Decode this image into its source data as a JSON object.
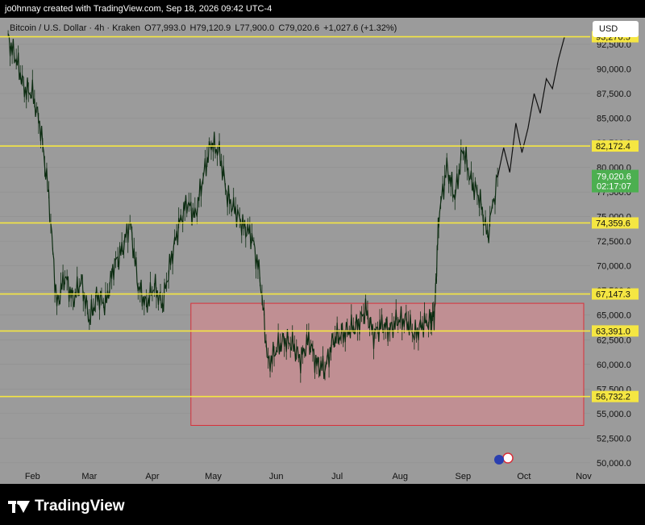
{
  "header": {
    "attribution": "jo0hnnay created with TradingView.com, Sep 18, 2026 09:42 UTC-4"
  },
  "legend": {
    "symbol": "Bitcoin / U.S. Dollar · 4h · Kraken",
    "open": "O77,993.0",
    "high": "H79,120.9",
    "low": "L77,900.0",
    "close": "C79,020.6",
    "change": "+1,027.6 (+1.32%)"
  },
  "currency_button": "USD",
  "brand": {
    "name": "TradingView"
  },
  "colors": {
    "plot_bg": "#9b9b9b",
    "level_line": "#f5e642",
    "zone_fill": "#c08f93",
    "zone_border": "#d9303a",
    "candle": "#0d2d12",
    "price_tag": "#4caf50"
  },
  "chart_data": {
    "type": "line",
    "series": [
      {
        "values_kind": "4h BTC/USD price path (historical candles through Sep 18)",
        "x": [
          "2026-01-20",
          "2026-01-24",
          "2026-01-28",
          "2026-02-01",
          "2026-02-05",
          "2026-02-09",
          "2026-02-13",
          "2026-02-17",
          "2026-02-21",
          "2026-02-25",
          "2026-03-01",
          "2026-03-05",
          "2026-03-09",
          "2026-03-13",
          "2026-03-17",
          "2026-03-21",
          "2026-03-25",
          "2026-03-29",
          "2026-04-02",
          "2026-04-06",
          "2026-04-10",
          "2026-04-14",
          "2026-04-18",
          "2026-04-22",
          "2026-04-26",
          "2026-04-30",
          "2026-05-04",
          "2026-05-08",
          "2026-05-12",
          "2026-05-16",
          "2026-05-20",
          "2026-05-24",
          "2026-05-28",
          "2026-06-01",
          "2026-06-05",
          "2026-06-09",
          "2026-06-13",
          "2026-06-17",
          "2026-06-21",
          "2026-06-25",
          "2026-06-29",
          "2026-07-03",
          "2026-07-07",
          "2026-07-11",
          "2026-07-15",
          "2026-07-19",
          "2026-07-23",
          "2026-07-27",
          "2026-07-31",
          "2026-08-04",
          "2026-08-08",
          "2026-08-12",
          "2026-08-16",
          "2026-08-18",
          "2026-08-20",
          "2026-08-24",
          "2026-08-28",
          "2026-09-01",
          "2026-09-05",
          "2026-09-09",
          "2026-09-13",
          "2026-09-18"
        ],
        "y": [
          93000,
          91000,
          88000,
          87500,
          84000,
          77000,
          66000,
          69000,
          66500,
          68500,
          64500,
          67000,
          66000,
          70000,
          71500,
          74500,
          68000,
          66000,
          68000,
          66000,
          70500,
          74000,
          76500,
          75000,
          79000,
          82500,
          81500,
          77000,
          75500,
          74000,
          73000,
          69000,
          60000,
          61500,
          62500,
          62000,
          60500,
          62500,
          60000,
          59500,
          62500,
          63000,
          63500,
          64000,
          65500,
          63000,
          64000,
          63500,
          64500,
          64500,
          63000,
          64000,
          64500,
          65000,
          75000,
          80000,
          77000,
          82000,
          78500,
          77000,
          73000,
          79000
        ]
      },
      {
        "values_kind": "projected path (drawn line)",
        "x": [
          "2026-09-18",
          "2026-09-21",
          "2026-09-24",
          "2026-09-27",
          "2026-09-30",
          "2026-10-03",
          "2026-10-06",
          "2026-10-09",
          "2026-10-12",
          "2026-10-15",
          "2026-10-18",
          "2026-10-21"
        ],
        "y": [
          79000,
          82000,
          79500,
          84500,
          81500,
          84000,
          87500,
          85500,
          89000,
          88000,
          91000,
          93300
        ]
      }
    ],
    "levels": [
      93270.5,
      82172.4,
      74359.6,
      67147.3,
      63391.0,
      56732.2
    ],
    "zone": {
      "x_start": "2026-04-20",
      "x_end": "2026-11-01",
      "y_top": 66200,
      "y_bottom": 53800
    },
    "last_price": "79,020.6",
    "countdown": "02:17:07",
    "y_ticks": [
      "92,500.0",
      "90,000.0",
      "87,500.0",
      "85,000.0",
      "82,500.0",
      "80,000.0",
      "77,500.0",
      "75,000.0",
      "72,500.0",
      "70,000.0",
      "67,500.0",
      "65,000.0",
      "62,500.0",
      "60,000.0",
      "57,500.0",
      "55,000.0",
      "52,500.0",
      "50,000.0"
    ],
    "x_ticks": [
      "Feb",
      "Mar",
      "Apr",
      "May",
      "Jun",
      "Jul",
      "Aug",
      "Sep",
      "Oct",
      "Nov"
    ],
    "ylim": [
      49500,
      95200
    ]
  }
}
